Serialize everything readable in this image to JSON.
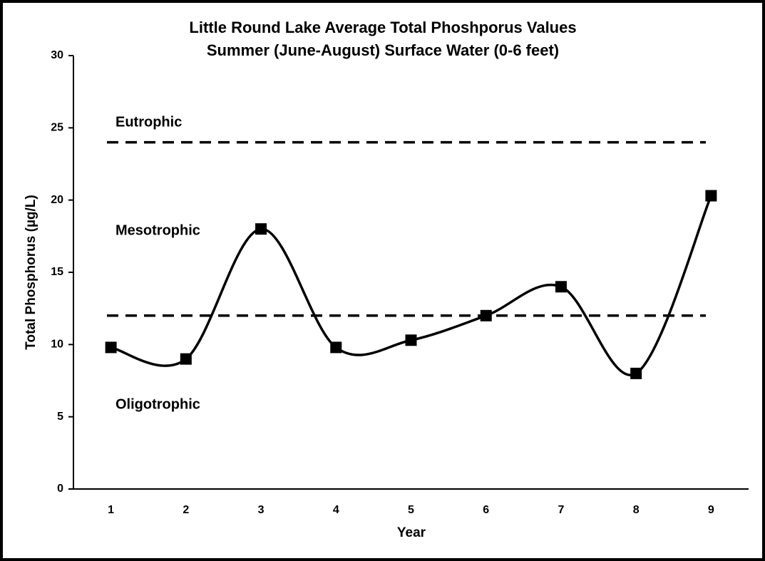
{
  "chart_data": {
    "type": "line",
    "title": "Little Round Lake Average Total Phoshporus Values",
    "subtitle": "Summer (June-August) Surface Water (0-6 feet)",
    "x_label": "Year",
    "y_label": "Total Phosphorus (µg/L)",
    "x": [
      1,
      2,
      3,
      4,
      5,
      6,
      7,
      8,
      9
    ],
    "series": [
      {
        "name": "Total Phosphorus",
        "color": "#000000",
        "values": [
          9.8,
          9.0,
          18.0,
          9.8,
          10.3,
          12.0,
          14.0,
          8.0,
          20.3
        ]
      }
    ],
    "xlim": [
      0.5,
      9.5
    ],
    "xticks": [
      1,
      2,
      3,
      4,
      5,
      6,
      7,
      8,
      9
    ],
    "ylim": [
      0,
      30
    ],
    "yticks": [
      0,
      5,
      10,
      15,
      20,
      25,
      30
    ],
    "reference_lines": [
      24,
      12
    ],
    "annotations": [
      "Eutrophic",
      "Mesotrophic",
      "Oligotrophic"
    ],
    "smooth": true,
    "marker": "square",
    "grid": false
  }
}
